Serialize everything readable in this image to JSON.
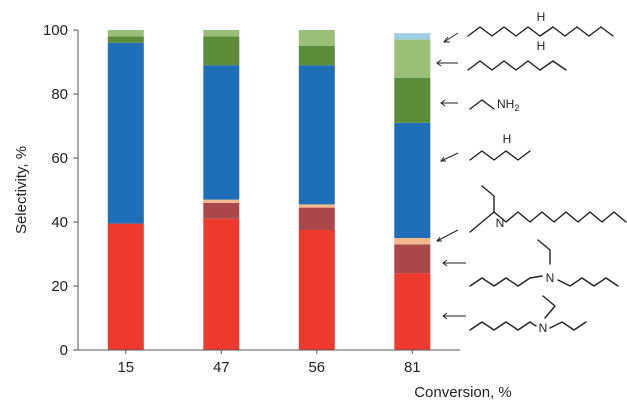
{
  "chart_data": {
    "type": "bar",
    "stacked": true,
    "categories": [
      "15",
      "47",
      "56",
      "81"
    ],
    "xlabel": "Conversion, %",
    "ylabel": "Selectivity, %",
    "ylim": [
      0,
      100
    ],
    "yticks": [
      0,
      20,
      40,
      60,
      80,
      100
    ],
    "grid": false,
    "legend": "none",
    "series": [
      {
        "color": "#ee3a2c",
        "values": [
          39.5,
          41,
          37.5,
          24
        ]
      },
      {
        "color": "#a8484b",
        "values": [
          0,
          5,
          7,
          9
        ]
      },
      {
        "color": "#f5b98f",
        "values": [
          0,
          1,
          1,
          2
        ]
      },
      {
        "color": "#1f6fb8",
        "values": [
          56.5,
          42,
          43.5,
          36
        ]
      },
      {
        "color": "#5b8c3a",
        "values": [
          2,
          9,
          6,
          14
        ]
      },
      {
        "color": "#9bbf78",
        "values": [
          2,
          2,
          5,
          12
        ]
      },
      {
        "color": "#9ccfe0",
        "values": [
          0,
          0,
          0,
          2
        ]
      }
    ]
  },
  "structures": {
    "nh_label": "H",
    "n_label": "N",
    "nh2_label": "NH",
    "nh2_sub": "2"
  }
}
